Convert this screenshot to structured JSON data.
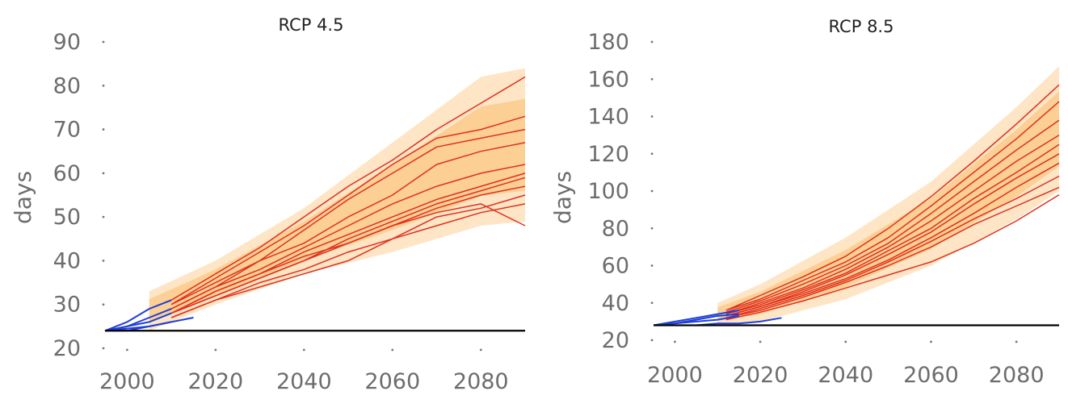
{
  "chart_data": [
    {
      "type": "line",
      "title": "RCP 4.5",
      "xlabel": "",
      "ylabel": "days",
      "xlim": [
        1995,
        2090
      ],
      "ylim": [
        20,
        90
      ],
      "xticks": [
        2000,
        2020,
        2040,
        2060,
        2080
      ],
      "yticks": [
        20,
        30,
        40,
        50,
        60,
        70,
        80,
        90
      ],
      "baseline": 24,
      "grid": false,
      "historical_color": "#1f3fd6",
      "projection_color": "#e0301e",
      "band_color": "#fbb45a",
      "baseline_color": "#000000",
      "historical": [
        {
          "x": [
            1995,
            2000,
            2005,
            2010
          ],
          "y": [
            24,
            26,
            29,
            31
          ]
        },
        {
          "x": [
            1995,
            2000,
            2005,
            2010
          ],
          "y": [
            24,
            25,
            27,
            29
          ]
        },
        {
          "x": [
            1995,
            2000,
            2005,
            2010
          ],
          "y": [
            24,
            25,
            26,
            28
          ]
        },
        {
          "x": [
            1995,
            2000,
            2005,
            2010
          ],
          "y": [
            24,
            24.5,
            25,
            26
          ]
        },
        {
          "x": [
            1995,
            2000,
            2005,
            2010,
            2015
          ],
          "y": [
            24,
            24,
            25,
            26,
            27
          ]
        }
      ],
      "band": {
        "x": [
          2005,
          2020,
          2040,
          2060,
          2080,
          2090
        ],
        "lower": [
          24,
          30,
          37,
          42,
          48,
          49
        ],
        "upper": [
          33,
          40,
          52,
          67,
          82,
          84
        ]
      },
      "series": [
        {
          "x": [
            2010,
            2020,
            2030,
            2040,
            2050,
            2060,
            2070,
            2080,
            2090
          ],
          "y": [
            31,
            37,
            43,
            50,
            57,
            63,
            70,
            76,
            82
          ]
        },
        {
          "x": [
            2010,
            2020,
            2030,
            2040,
            2050,
            2060,
            2070,
            2080,
            2090
          ],
          "y": [
            30,
            36,
            42,
            48,
            55,
            62,
            68,
            70,
            73
          ]
        },
        {
          "x": [
            2010,
            2020,
            2030,
            2040,
            2050,
            2060,
            2070,
            2080,
            2090
          ],
          "y": [
            29,
            34,
            40,
            47,
            54,
            60,
            66,
            68,
            70
          ]
        },
        {
          "x": [
            2010,
            2020,
            2030,
            2040,
            2050,
            2060,
            2070,
            2080,
            2090
          ],
          "y": [
            30,
            35,
            40,
            44,
            50,
            55,
            62,
            65,
            67
          ]
        },
        {
          "x": [
            2010,
            2020,
            2030,
            2040,
            2050,
            2060,
            2070,
            2080,
            2090
          ],
          "y": [
            29,
            34,
            38,
            43,
            48,
            53,
            57,
            60,
            62
          ]
        },
        {
          "x": [
            2010,
            2020,
            2030,
            2040,
            2050,
            2060,
            2070,
            2080,
            2090
          ],
          "y": [
            28,
            33,
            37,
            42,
            46,
            50,
            54,
            57,
            60
          ]
        },
        {
          "x": [
            2010,
            2020,
            2030,
            2040,
            2050,
            2060,
            2070,
            2080,
            2090
          ],
          "y": [
            28,
            32,
            36,
            40,
            45,
            49,
            53,
            56,
            59
          ]
        },
        {
          "x": [
            2010,
            2020,
            2030,
            2040,
            2050,
            2060,
            2070,
            2080,
            2090
          ],
          "y": [
            28,
            33,
            37,
            41,
            44,
            48,
            52,
            55,
            57
          ]
        },
        {
          "x": [
            2010,
            2020,
            2030,
            2040,
            2050,
            2060,
            2070,
            2080,
            2090
          ],
          "y": [
            27,
            31,
            35,
            38,
            42,
            45,
            50,
            52,
            55
          ]
        },
        {
          "x": [
            2010,
            2020,
            2030,
            2040,
            2050,
            2060,
            2070,
            2080,
            2090
          ],
          "y": [
            27,
            31,
            34,
            37,
            40,
            45,
            48,
            51,
            53
          ]
        },
        {
          "x": [
            2010,
            2020,
            2030,
            2040,
            2050,
            2060,
            2070,
            2080,
            2090
          ],
          "y": [
            28,
            32,
            36,
            40,
            44,
            48,
            51,
            53,
            48
          ]
        }
      ]
    },
    {
      "type": "line",
      "title": "RCP 8.5",
      "xlabel": "",
      "ylabel": "days",
      "xlim": [
        1995,
        2090
      ],
      "ylim": [
        20,
        180
      ],
      "xticks": [
        2000,
        2020,
        2040,
        2060,
        2080
      ],
      "yticks": [
        20,
        40,
        60,
        80,
        100,
        120,
        140,
        160,
        180
      ],
      "baseline": 28,
      "grid": false,
      "historical_color": "#1f3fd6",
      "projection_color": "#e0301e",
      "band_color": "#fbb45a",
      "baseline_color": "#000000",
      "historical": [
        {
          "x": [
            1995,
            2000,
            2005,
            2010,
            2015
          ],
          "y": [
            28,
            30,
            32,
            34,
            36
          ]
        },
        {
          "x": [
            1995,
            2000,
            2005,
            2010,
            2015
          ],
          "y": [
            28,
            29,
            31,
            33,
            34
          ]
        },
        {
          "x": [
            1995,
            2000,
            2005,
            2010,
            2015
          ],
          "y": [
            28,
            29,
            30,
            31,
            33
          ]
        },
        {
          "x": [
            1995,
            2000,
            2005,
            2010,
            2015,
            2020,
            2025
          ],
          "y": [
            28,
            28,
            28,
            29,
            29,
            30,
            32
          ]
        }
      ],
      "band": {
        "x": [
          2010,
          2020,
          2040,
          2060,
          2080,
          2090
        ],
        "lower": [
          28,
          30,
          42,
          60,
          85,
          100
        ],
        "upper": [
          40,
          50,
          75,
          105,
          145,
          167
        ]
      },
      "series": [
        {
          "x": [
            2012,
            2020,
            2030,
            2040,
            2050,
            2060,
            2070,
            2080,
            2090
          ],
          "y": [
            36,
            44,
            54,
            65,
            80,
            97,
            116,
            136,
            157
          ]
        },
        {
          "x": [
            2012,
            2020,
            2030,
            2040,
            2050,
            2060,
            2070,
            2080,
            2090
          ],
          "y": [
            36,
            42,
            52,
            62,
            75,
            92,
            110,
            128,
            148
          ]
        },
        {
          "x": [
            2012,
            2020,
            2030,
            2040,
            2050,
            2060,
            2070,
            2080,
            2090
          ],
          "y": [
            35,
            41,
            50,
            60,
            72,
            88,
            105,
            122,
            138
          ]
        },
        {
          "x": [
            2012,
            2020,
            2030,
            2040,
            2050,
            2060,
            2070,
            2080,
            2090
          ],
          "y": [
            34,
            40,
            48,
            58,
            70,
            84,
            100,
            116,
            130
          ]
        },
        {
          "x": [
            2012,
            2020,
            2030,
            2040,
            2050,
            2060,
            2070,
            2080,
            2090
          ],
          "y": [
            34,
            39,
            47,
            56,
            68,
            80,
            96,
            110,
            125
          ]
        },
        {
          "x": [
            2012,
            2020,
            2030,
            2040,
            2050,
            2060,
            2070,
            2080,
            2090
          ],
          "y": [
            33,
            38,
            46,
            55,
            66,
            78,
            93,
            107,
            120
          ]
        },
        {
          "x": [
            2012,
            2020,
            2030,
            2040,
            2050,
            2060,
            2070,
            2080,
            2090
          ],
          "y": [
            33,
            38,
            45,
            53,
            63,
            75,
            88,
            102,
            115
          ]
        },
        {
          "x": [
            2012,
            2020,
            2030,
            2040,
            2050,
            2060,
            2070,
            2080,
            2090
          ],
          "y": [
            32,
            37,
            44,
            52,
            62,
            73,
            85,
            96,
            108
          ]
        },
        {
          "x": [
            2012,
            2020,
            2030,
            2040,
            2050,
            2060,
            2070,
            2080,
            2090
          ],
          "y": [
            32,
            36,
            43,
            51,
            60,
            70,
            82,
            92,
            102
          ]
        },
        {
          "x": [
            2012,
            2020,
            2030,
            2040,
            2050,
            2060,
            2070,
            2080,
            2090
          ],
          "y": [
            31,
            35,
            41,
            48,
            55,
            62,
            72,
            84,
            98
          ]
        }
      ]
    }
  ]
}
